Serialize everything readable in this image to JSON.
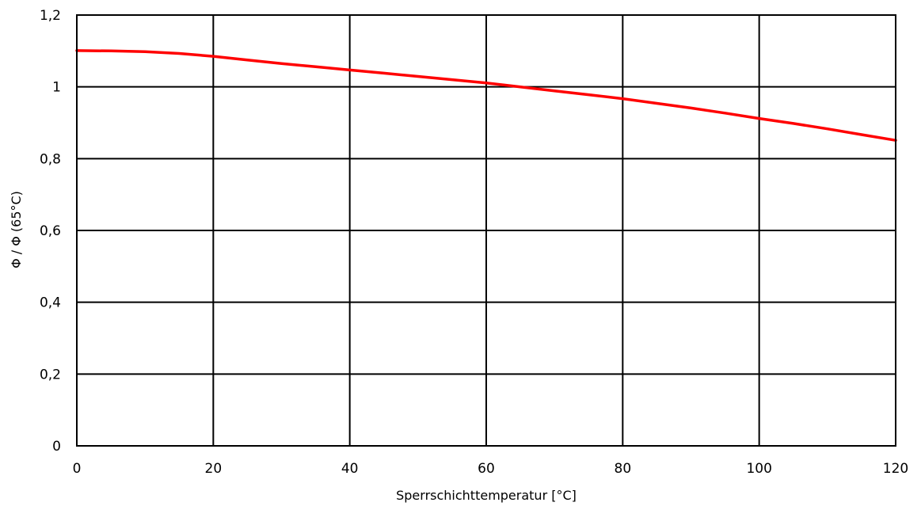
{
  "chart_data": {
    "type": "line",
    "title": "",
    "xlabel": "Sperrschichttemperatur [°C]",
    "ylabel": "Φ / Φ (65°C)",
    "xlim": [
      0,
      120
    ],
    "ylim": [
      0,
      1.2
    ],
    "x_ticks": [
      0,
      20,
      40,
      60,
      80,
      100,
      120
    ],
    "x_tick_labels": [
      "0",
      "20",
      "40",
      "60",
      "80",
      "100",
      "120"
    ],
    "y_ticks": [
      0,
      0.2,
      0.4,
      0.6,
      0.8,
      1.0,
      1.2
    ],
    "y_tick_labels": [
      "0",
      "0,2",
      "0,4",
      "0,6",
      "0,8",
      "1",
      "1,2"
    ],
    "grid": true,
    "legend": "none",
    "line_color": "#ff0000",
    "grid_color": "#000000",
    "series": [
      {
        "x": [
          0,
          5,
          10,
          15,
          20,
          25,
          30,
          35,
          40,
          45,
          50,
          55,
          60,
          65,
          70,
          75,
          80,
          85,
          90,
          95,
          100,
          105,
          110,
          115,
          120
        ],
        "y": [
          1.101,
          1.1,
          1.098,
          1.093,
          1.085,
          1.075,
          1.065,
          1.056,
          1.047,
          1.038,
          1.029,
          1.02,
          1.011,
          1.0,
          0.989,
          0.978,
          0.967,
          0.954,
          0.941,
          0.927,
          0.912,
          0.898,
          0.883,
          0.867,
          0.851
        ]
      }
    ]
  }
}
